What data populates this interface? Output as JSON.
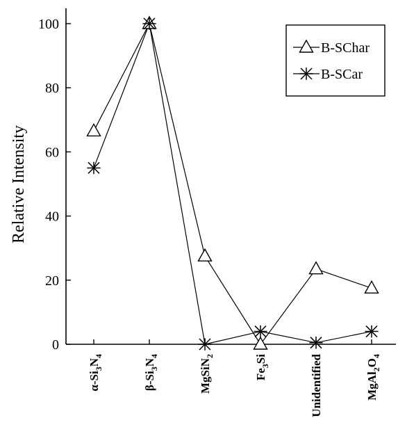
{
  "chart_data": {
    "type": "line",
    "title": "",
    "xlabel": "",
    "ylabel": "Relative Intensity",
    "ylim": [
      0,
      100
    ],
    "yticks": [
      0,
      20,
      40,
      60,
      80,
      100
    ],
    "grid": false,
    "legend_position": "top-right",
    "categories": [
      {
        "base": "α-Si",
        "parts": [
          [
            "α-Si",
            ""
          ],
          [
            "3",
            "sub"
          ],
          [
            "N",
            ""
          ],
          [
            "4",
            "sub"
          ]
        ]
      },
      {
        "base": "β-Si",
        "parts": [
          [
            "β-Si",
            ""
          ],
          [
            "3",
            "sub"
          ],
          [
            "N",
            ""
          ],
          [
            "4",
            "sub"
          ]
        ]
      },
      {
        "base": "MgSiN",
        "parts": [
          [
            "MgSiN",
            ""
          ],
          [
            "2",
            "sub"
          ]
        ]
      },
      {
        "base": "Fe",
        "parts": [
          [
            "Fe",
            ""
          ],
          [
            "3",
            "sub"
          ],
          [
            "Si",
            ""
          ]
        ]
      },
      {
        "base": "Unidentified",
        "parts": [
          [
            "Unidentified",
            ""
          ]
        ]
      },
      {
        "base": "MgAl",
        "parts": [
          [
            "MgAl",
            ""
          ],
          [
            "2",
            "sub"
          ],
          [
            "O",
            ""
          ],
          [
            "4",
            "sub"
          ]
        ]
      }
    ],
    "series": [
      {
        "name": "B-SChar",
        "marker": "triangle",
        "values": [
          66.5,
          100,
          27.5,
          0,
          23.5,
          17.5
        ]
      },
      {
        "name": "B-SCar",
        "marker": "star",
        "values": [
          55,
          100,
          0,
          4,
          0.5,
          4
        ]
      }
    ]
  }
}
